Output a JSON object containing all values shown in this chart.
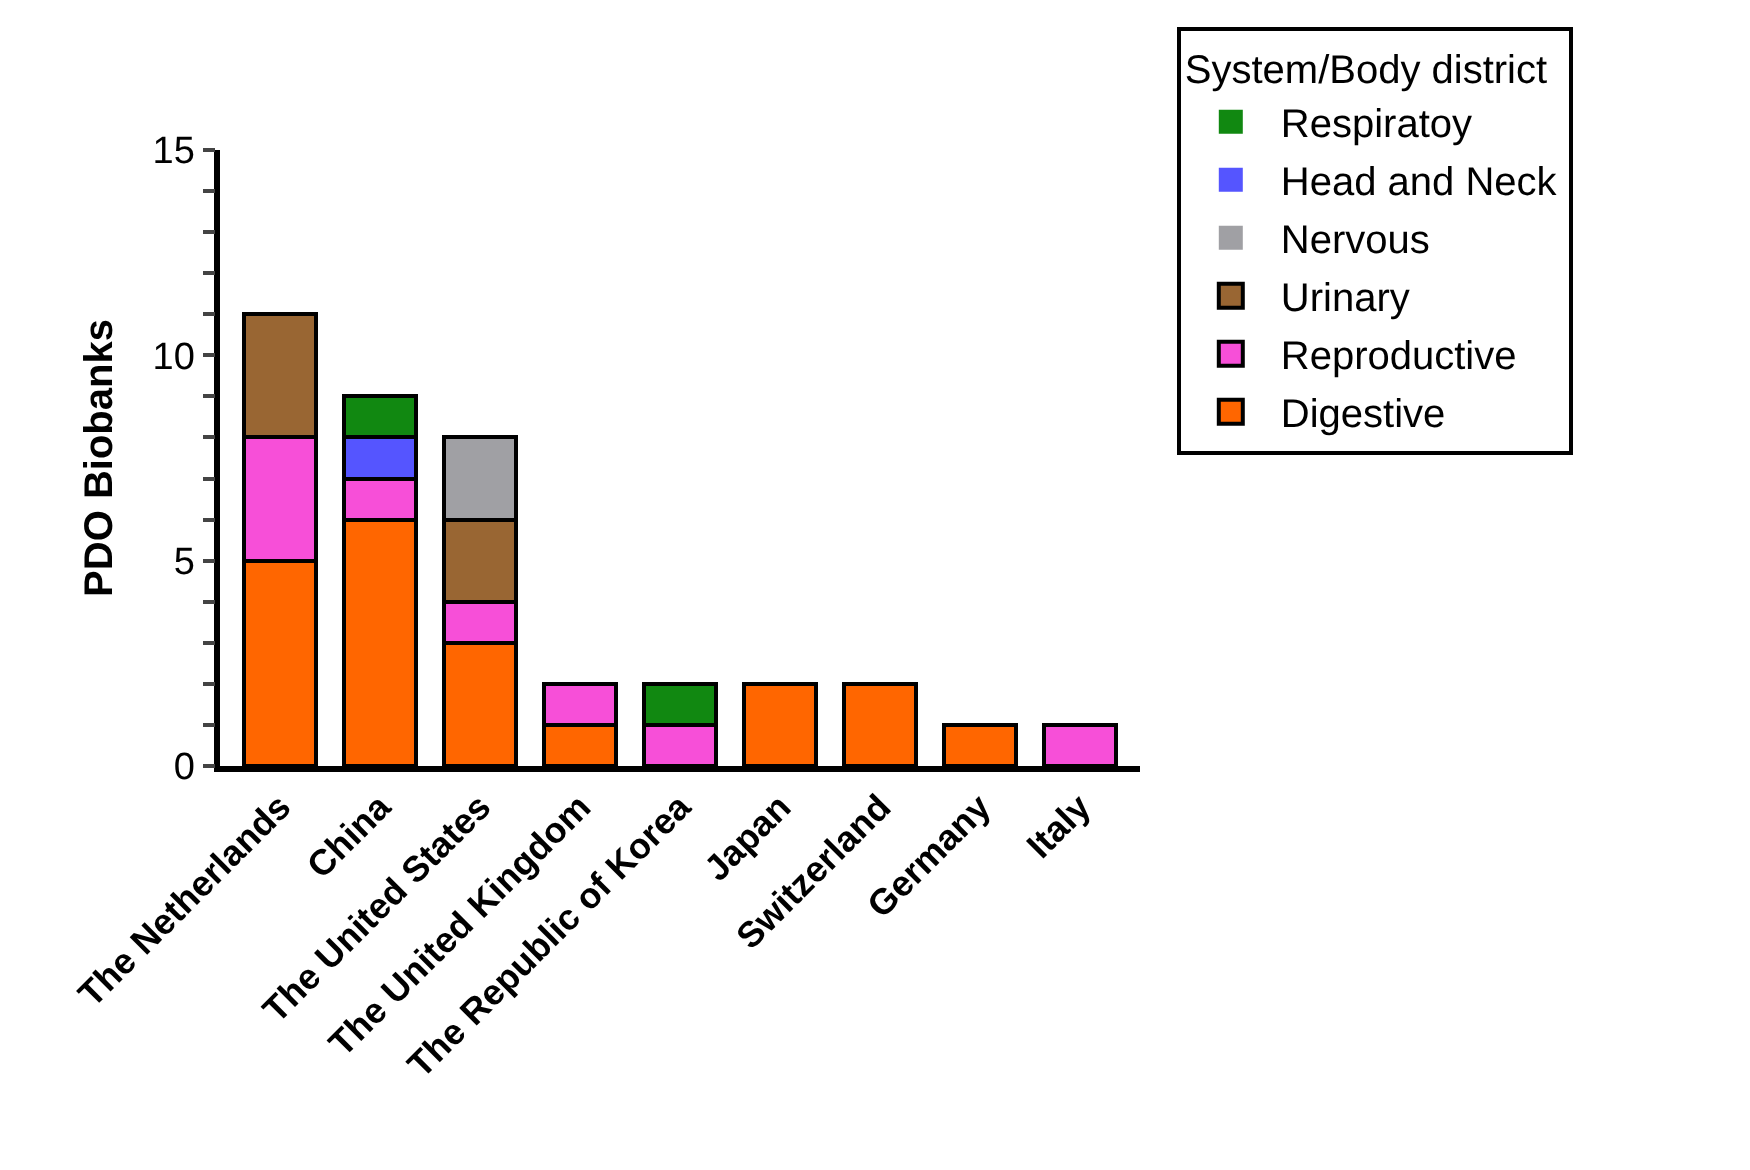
{
  "chart_data": {
    "type": "bar",
    "stacked": true,
    "ylabel": "PDO Biobanks",
    "legend_title": "System/Body district",
    "categories": [
      "The Netherlands",
      "China",
      "The United States",
      "The United Kingdom",
      "The Republic of Korea",
      "Japan",
      "Switzerland",
      "Germany",
      "Italy"
    ],
    "series": [
      {
        "name": "Digestive",
        "color": "#ff6600",
        "values": [
          5,
          6,
          3,
          1,
          0,
          2,
          2,
          1,
          0
        ]
      },
      {
        "name": "Reproductive",
        "color": "#f74fd8",
        "values": [
          3,
          1,
          1,
          1,
          1,
          0,
          0,
          0,
          1
        ]
      },
      {
        "name": "Urinary",
        "color": "#996633",
        "values": [
          3,
          0,
          2,
          0,
          0,
          0,
          0,
          0,
          0
        ]
      },
      {
        "name": "Nervous",
        "color": "#a0a0a4",
        "values": [
          0,
          0,
          2,
          0,
          0,
          0,
          0,
          0,
          0
        ]
      },
      {
        "name": "Head and Neck",
        "color": "#5555ff",
        "values": [
          0,
          1,
          0,
          0,
          0,
          0,
          0,
          0,
          0
        ]
      },
      {
        "name": "Respiratoy",
        "color": "#118811",
        "values": [
          0,
          1,
          0,
          0,
          1,
          0,
          0,
          0,
          0
        ]
      }
    ],
    "ylim": [
      0,
      15
    ],
    "yticks": [
      0,
      {
        "value": 1,
        "label": null
      },
      {
        "value": 2,
        "label": null
      },
      {
        "value": 3,
        "label": null
      },
      {
        "value": 4,
        "label": null
      },
      5,
      {
        "value": 6,
        "label": null
      },
      {
        "value": 7,
        "label": null
      },
      {
        "value": 8,
        "label": null
      },
      {
        "value": 9,
        "label": null
      },
      10,
      {
        "value": 11,
        "label": null
      },
      {
        "value": 12,
        "label": null
      },
      {
        "value": 13,
        "label": null
      },
      {
        "value": 14,
        "label": null
      },
      15
    ],
    "legend": "top right"
  }
}
